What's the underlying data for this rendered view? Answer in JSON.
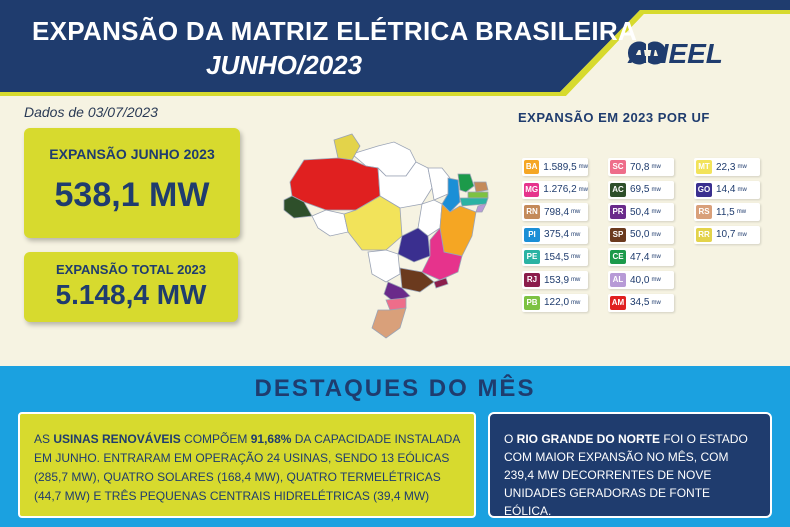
{
  "header": {
    "title": "EXPANSÃO DA MATRIZ ELÉTRICA BRASILEIRA",
    "subtitle": "JUNHO/2023",
    "logo_text": "ANEEL",
    "colors": {
      "navy": "#1f3c6e",
      "lime": "#d7da2e",
      "cyan": "#1ba1e0"
    }
  },
  "date": "Dados de 03/07/2023",
  "kpis": [
    {
      "label": "EXPANSÃO JUNHO 2023",
      "value": "538,1 MW"
    },
    {
      "label": "EXPANSÃO TOTAL 2023",
      "value": "5.148,4 MW"
    }
  ],
  "uf": {
    "title": "EXPANSÃO EM 2023 POR UF",
    "unit": "mw",
    "items": [
      {
        "code": "BA",
        "value": "1.589,5",
        "color": "#f5a623"
      },
      {
        "code": "MG",
        "value": "1.276,2",
        "color": "#e6338c"
      },
      {
        "code": "RN",
        "value": "798,4",
        "color": "#c48a5a"
      },
      {
        "code": "PI",
        "value": "375,4",
        "color": "#1b8fd6"
      },
      {
        "code": "PE",
        "value": "154,5",
        "color": "#2bb3a3"
      },
      {
        "code": "RJ",
        "value": "153,9",
        "color": "#8b1d4b"
      },
      {
        "code": "PB",
        "value": "122,0",
        "color": "#7dc242"
      },
      {
        "code": "SC",
        "value": "70,8",
        "color": "#ee6d8a"
      },
      {
        "code": "AC",
        "value": "69,5",
        "color": "#2e4f2a"
      },
      {
        "code": "PR",
        "value": "50,4",
        "color": "#6a2a8a"
      },
      {
        "code": "SP",
        "value": "50,0",
        "color": "#6b3a1e"
      },
      {
        "code": "CE",
        "value": "47,4",
        "color": "#1c9a4a"
      },
      {
        "code": "AL",
        "value": "40,0",
        "color": "#b79ad6"
      },
      {
        "code": "AM",
        "value": "34,5",
        "color": "#e02020"
      },
      {
        "code": "MT",
        "value": "22,3",
        "color": "#f2e35a"
      },
      {
        "code": "GO",
        "value": "14,4",
        "color": "#3a2f8f"
      },
      {
        "code": "RS",
        "value": "11,5",
        "color": "#d9a07a"
      },
      {
        "code": "RR",
        "value": "10,7",
        "color": "#e3d34a"
      }
    ]
  },
  "highlights": {
    "title": "DESTAQUES DO MÊS",
    "left": {
      "p1": "AS ",
      "b1": "USINAS RENOVÁVEIS",
      "p2": " COMPÕEM ",
      "b2": "91,68%",
      "p3": " DA CAPACIDADE INSTALADA EM JUNHO. ENTRARAM EM OPERAÇÃO 24 USINAS, SENDO 13 EÓLICAS (285,7 MW), QUATRO SOLARES (168,4 MW), QUATRO TERMELÉTRICAS (44,7 MW) E TRÊS PEQUENAS CENTRAIS HIDRELÉTRICAS (39,4 MW)"
    },
    "right": {
      "p1": "O ",
      "b1": "RIO GRANDE DO NORTE",
      "p2": " FOI O ESTADO COM MAIOR EXPANSÃO NO MÊS, COM 239,4 MW DECORRENTES DE NOVE UNIDADES GERADORAS DE FONTE EÓLICA."
    }
  }
}
